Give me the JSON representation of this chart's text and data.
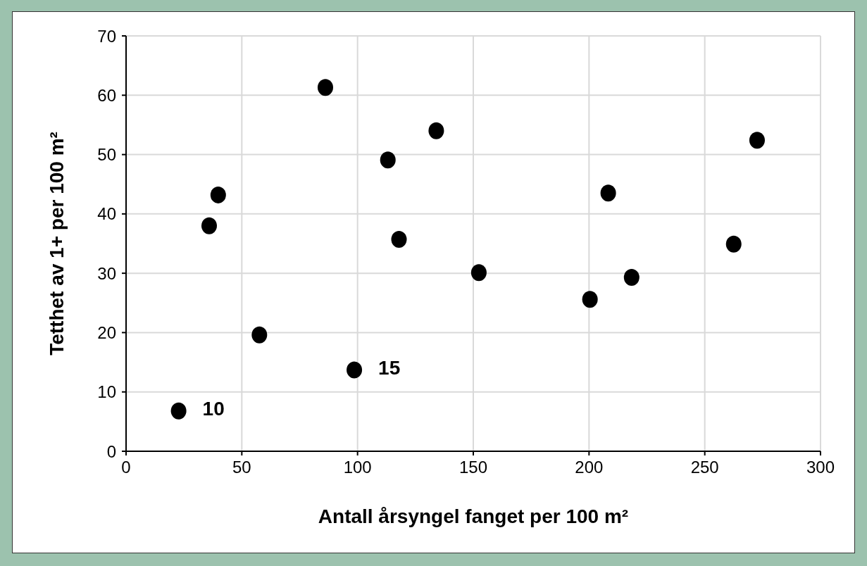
{
  "chart_data": {
    "type": "scatter",
    "xlabel": "Antall årsyngel fanget per 100 m²",
    "ylabel": "Tetthet av 1+ per 100 m²",
    "x": [
      22.7,
      35.9,
      39.8,
      57.6,
      86.1,
      98.6,
      113.1,
      117.9,
      134.0,
      152.4,
      200.4,
      208.3,
      218.4,
      262.5,
      272.6
    ],
    "values": [
      6.8,
      38.0,
      43.2,
      19.6,
      61.3,
      13.7,
      49.1,
      35.7,
      54.0,
      30.1,
      25.6,
      43.5,
      29.3,
      34.9,
      52.4
    ],
    "color": "#000000",
    "marker": "circle",
    "xlim": [
      0,
      300
    ],
    "xticks": [
      0,
      50,
      100,
      150,
      200,
      250,
      300
    ],
    "ylim": [
      0,
      70
    ],
    "yticks": [
      0,
      10,
      20,
      30,
      40,
      50,
      60,
      70
    ],
    "grid": true,
    "annotations": [
      {
        "text": "10",
        "x": 22.7,
        "y": 6.8
      },
      {
        "text": "15",
        "x": 98.6,
        "y": 13.7
      }
    ]
  }
}
